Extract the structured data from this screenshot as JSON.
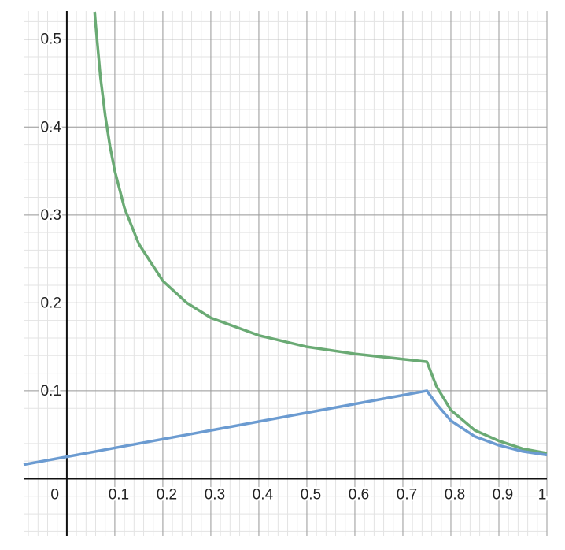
{
  "chart_data": {
    "type": "line",
    "xlim": [
      -0.09,
      1.0
    ],
    "ylim": [
      -0.065,
      0.532
    ],
    "xticks": [
      0,
      0.1,
      0.2,
      0.3,
      0.4,
      0.5,
      0.6,
      0.7,
      0.8,
      0.9,
      1
    ],
    "yticks": [
      0.1,
      0.2,
      0.3,
      0.4,
      0.5
    ],
    "grid": true,
    "minor_divisions": 5,
    "series": [
      {
        "color": "#6aaa74",
        "x": [
          0.058,
          0.06,
          0.07,
          0.08,
          0.09,
          0.1,
          0.12,
          0.15,
          0.2,
          0.25,
          0.3,
          0.4,
          0.5,
          0.6,
          0.7,
          0.75,
          0.77,
          0.8,
          0.85,
          0.9,
          0.95,
          1.0
        ],
        "values": [
          0.531,
          0.517,
          0.457,
          0.413,
          0.378,
          0.35,
          0.308,
          0.267,
          0.225,
          0.2,
          0.183,
          0.163,
          0.15,
          0.142,
          0.136,
          0.133,
          0.105,
          0.078,
          0.055,
          0.043,
          0.034,
          0.029
        ]
      },
      {
        "color": "#6b9bd1",
        "x": [
          -0.09,
          0.75,
          0.77,
          0.8,
          0.85,
          0.9,
          0.95,
          1.0
        ],
        "values": [
          0.016,
          0.1,
          0.085,
          0.066,
          0.048,
          0.038,
          0.031,
          0.027
        ]
      }
    ]
  }
}
